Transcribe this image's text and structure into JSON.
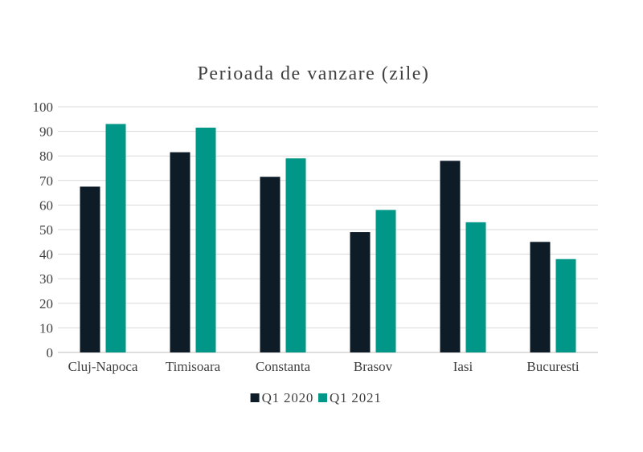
{
  "chart_data": {
    "type": "bar",
    "title": "Perioada de vanzare (zile)",
    "categories": [
      "Cluj-Napoca",
      "Timisoara",
      "Constanta",
      "Brasov",
      "Iasi",
      "Bucuresti"
    ],
    "series": [
      {
        "name": "Q1 2020",
        "values": [
          67.5,
          81.5,
          71.5,
          49,
          78,
          45
        ],
        "color": "#0e1c28"
      },
      {
        "name": "Q1 2021",
        "values": [
          93,
          91.5,
          79,
          58,
          53,
          38
        ],
        "color": "#009688"
      }
    ],
    "ylim": [
      0,
      100
    ],
    "yticks": [
      "0",
      "10",
      "20",
      "30",
      "40",
      "50",
      "60",
      "70",
      "80",
      "90",
      "100"
    ],
    "xlabel": "",
    "ylabel": "",
    "grid": true,
    "legend": "bottom-center"
  }
}
